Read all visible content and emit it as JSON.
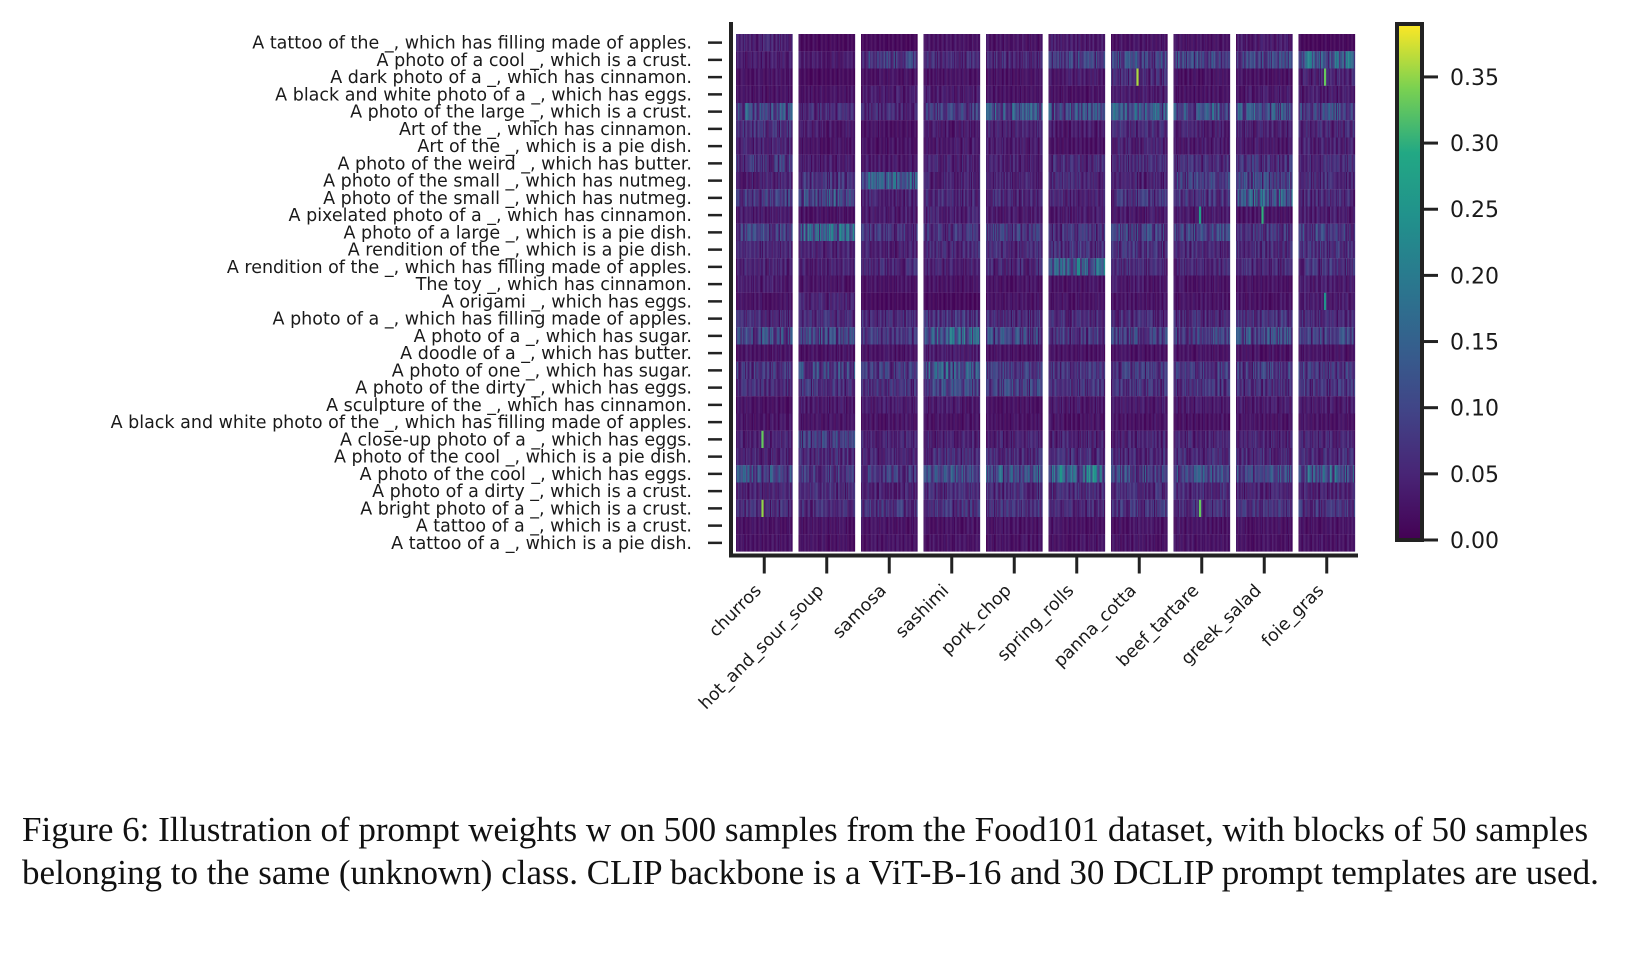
{
  "chart_data": {
    "type": "heatmap",
    "title": "",
    "xlabel": "",
    "ylabel": "",
    "rows": [
      "A tattoo of the _, which has filling made of apples.",
      "A photo of a cool _, which is a crust.",
      "A dark photo of a _, which has cinnamon.",
      "A black and white photo of a _, which has eggs.",
      "A photo of the large _, which is a crust.",
      "Art of the _, which has cinnamon.",
      "Art of the _, which is a pie dish.",
      "A photo of the weird _, which has butter.",
      "A photo of the small _, which has nutmeg.",
      "A photo of the small _, which has nutmeg.",
      "A pixelated photo of a _, which has cinnamon.",
      "A photo of a large _, which is a pie dish.",
      "A rendition of the _, which is a pie dish.",
      "A rendition of the _, which has filling made of apples.",
      "The toy _, which has cinnamon.",
      "A origami _, which has eggs.",
      "A photo of a _, which has filling made of apples.",
      "A photo of a _, which has sugar.",
      "A doodle of a _, which has butter.",
      "A photo of one _, which has sugar.",
      "A photo of the dirty _, which has eggs.",
      "A sculpture of the _, which has cinnamon.",
      "A black and white photo of the _, which has filling made of apples.",
      "A close-up photo of a _, which has eggs.",
      "A photo of the cool _, which is a pie dish.",
      "A photo of the cool _, which has eggs.",
      "A photo of a dirty _, which is a crust.",
      "A bright photo of a _, which is a crust.",
      "A tattoo of a _, which is a crust.",
      "A tattoo of a _, which is a pie dish."
    ],
    "blocks": [
      "churros",
      "hot_and_sour_soup",
      "samosa",
      "sashimi",
      "pork_chop",
      "spring_rolls",
      "panna_cotta",
      "beef_tartare",
      "greek_salad",
      "foie_gras"
    ],
    "samples_per_block": 50,
    "colorbar": {
      "colormap": "viridis",
      "min": 0.0,
      "max": 0.39,
      "ticks": [
        "0.00",
        "0.05",
        "0.10",
        "0.15",
        "0.20",
        "0.25",
        "0.30",
        "0.35"
      ],
      "tick_values": [
        0.0,
        0.05,
        0.1,
        0.15,
        0.2,
        0.25,
        0.3,
        0.35
      ]
    },
    "row_mean_weights": [
      [
        0.04,
        0.01,
        0.01,
        0.02,
        0.02,
        0.03,
        0.02,
        0.02,
        0.03,
        0.01
      ],
      [
        0.03,
        0.03,
        0.08,
        0.05,
        0.05,
        0.08,
        0.09,
        0.09,
        0.08,
        0.14
      ],
      [
        0.02,
        0.01,
        0.02,
        0.02,
        0.02,
        0.03,
        0.05,
        0.02,
        0.02,
        0.04
      ],
      [
        0.02,
        0.02,
        0.03,
        0.03,
        0.02,
        0.02,
        0.03,
        0.02,
        0.03,
        0.03
      ],
      [
        0.11,
        0.05,
        0.05,
        0.07,
        0.11,
        0.1,
        0.12,
        0.11,
        0.11,
        0.1
      ],
      [
        0.06,
        0.03,
        0.02,
        0.03,
        0.04,
        0.03,
        0.05,
        0.04,
        0.04,
        0.05
      ],
      [
        0.04,
        0.02,
        0.02,
        0.03,
        0.03,
        0.02,
        0.04,
        0.03,
        0.03,
        0.04
      ],
      [
        0.07,
        0.03,
        0.03,
        0.04,
        0.04,
        0.05,
        0.05,
        0.05,
        0.06,
        0.05
      ],
      [
        0.04,
        0.06,
        0.12,
        0.04,
        0.04,
        0.05,
        0.04,
        0.08,
        0.09,
        0.05
      ],
      [
        0.07,
        0.1,
        0.04,
        0.05,
        0.05,
        0.04,
        0.06,
        0.06,
        0.12,
        0.05
      ],
      [
        0.03,
        0.02,
        0.03,
        0.04,
        0.03,
        0.03,
        0.03,
        0.03,
        0.02,
        0.03
      ],
      [
        0.08,
        0.14,
        0.06,
        0.06,
        0.08,
        0.06,
        0.08,
        0.09,
        0.07,
        0.08
      ],
      [
        0.04,
        0.04,
        0.04,
        0.05,
        0.05,
        0.06,
        0.06,
        0.05,
        0.05,
        0.06
      ],
      [
        0.04,
        0.04,
        0.05,
        0.04,
        0.05,
        0.14,
        0.05,
        0.05,
        0.05,
        0.06
      ],
      [
        0.03,
        0.02,
        0.02,
        0.02,
        0.02,
        0.02,
        0.03,
        0.02,
        0.02,
        0.03
      ],
      [
        0.02,
        0.04,
        0.01,
        0.01,
        0.02,
        0.02,
        0.02,
        0.02,
        0.02,
        0.03
      ],
      [
        0.05,
        0.05,
        0.05,
        0.06,
        0.05,
        0.05,
        0.05,
        0.05,
        0.06,
        0.05
      ],
      [
        0.09,
        0.09,
        0.07,
        0.13,
        0.09,
        0.07,
        0.08,
        0.08,
        0.1,
        0.08
      ],
      [
        0.02,
        0.02,
        0.02,
        0.03,
        0.02,
        0.02,
        0.02,
        0.02,
        0.02,
        0.02
      ],
      [
        0.07,
        0.09,
        0.07,
        0.12,
        0.07,
        0.06,
        0.07,
        0.07,
        0.07,
        0.07
      ],
      [
        0.05,
        0.06,
        0.06,
        0.09,
        0.08,
        0.06,
        0.06,
        0.06,
        0.06,
        0.06
      ],
      [
        0.02,
        0.03,
        0.03,
        0.03,
        0.02,
        0.03,
        0.03,
        0.03,
        0.03,
        0.03
      ],
      [
        0.02,
        0.02,
        0.02,
        0.02,
        0.02,
        0.02,
        0.02,
        0.02,
        0.02,
        0.02
      ],
      [
        0.04,
        0.08,
        0.04,
        0.04,
        0.04,
        0.04,
        0.04,
        0.04,
        0.04,
        0.04
      ],
      [
        0.04,
        0.05,
        0.04,
        0.05,
        0.05,
        0.05,
        0.05,
        0.05,
        0.05,
        0.05
      ],
      [
        0.1,
        0.07,
        0.07,
        0.1,
        0.11,
        0.15,
        0.09,
        0.1,
        0.09,
        0.13
      ],
      [
        0.04,
        0.05,
        0.04,
        0.05,
        0.05,
        0.05,
        0.05,
        0.05,
        0.04,
        0.04
      ],
      [
        0.05,
        0.05,
        0.06,
        0.06,
        0.06,
        0.05,
        0.06,
        0.06,
        0.06,
        0.06
      ],
      [
        0.02,
        0.02,
        0.02,
        0.02,
        0.02,
        0.02,
        0.02,
        0.02,
        0.02,
        0.02
      ],
      [
        0.02,
        0.02,
        0.02,
        0.02,
        0.02,
        0.02,
        0.02,
        0.02,
        0.02,
        0.02
      ]
    ],
    "highlights": [
      {
        "row": 2,
        "block": 6,
        "value": 0.36
      },
      {
        "row": 2,
        "block": 9,
        "value": 0.33
      },
      {
        "row": 10,
        "block": 7,
        "value": 0.27
      },
      {
        "row": 10,
        "block": 8,
        "value": 0.3
      },
      {
        "row": 15,
        "block": 9,
        "value": 0.25
      },
      {
        "row": 23,
        "block": 0,
        "value": 0.33
      },
      {
        "row": 27,
        "block": 0,
        "value": 0.35
      },
      {
        "row": 27,
        "block": 7,
        "value": 0.33
      }
    ]
  },
  "caption": "Figure 6: Illustration of prompt weights w on 500 samples from the Food101 dataset, with blocks of 50 samples belonging to the same (unknown) class. CLIP backbone is a ViT-B-16 and 30 DCLIP prompt templates are used."
}
